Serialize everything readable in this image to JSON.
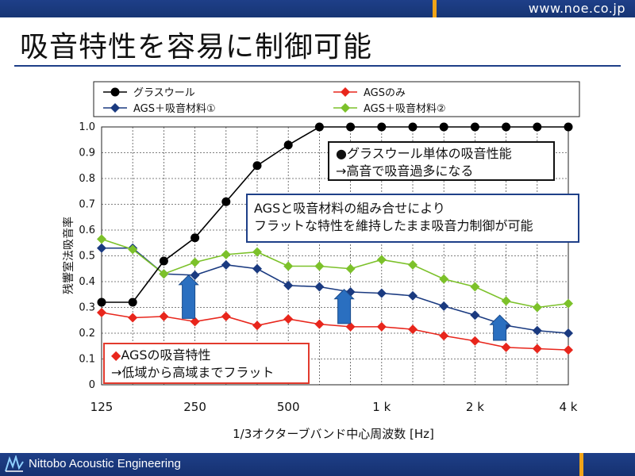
{
  "header": {
    "site_url": "www.noe.co.jp"
  },
  "page": {
    "title": "吸音特性を容易に制御可能"
  },
  "footer": {
    "company_name": "Nittobo Acoustic Engineering"
  },
  "colors": {
    "brand_blue": "#1e3f88",
    "accent_orange": "#f0a418",
    "glass_wool": "#000000",
    "ags_only": "#e8261c",
    "ags_absorber_1": "#1a3a80",
    "ags_absorber_2": "#7cc12a",
    "arrow_blue": "#2a6fc0"
  },
  "annotations": {
    "glass_wool_line1": "●グラスウール単体の吸音性能",
    "glass_wool_line2": "→高音で吸音過多になる",
    "absorber_line1": "AGSと吸音材料の組み合せにより",
    "absorber_line2": "フラットな特性を維持したまま吸音力制御が可能",
    "ags_line1_marker": "◆",
    "ags_line1": "AGSの吸音特性",
    "ags_line2": "→低域から高域までフラット"
  },
  "chart_data": {
    "type": "line",
    "xlabel": "1/3オクターブバンド中心周波数 [Hz]",
    "ylabel": "残響室法吸音率",
    "ylim": [
      0,
      1.0
    ],
    "yticks": [
      "0",
      "0.1",
      "0.2",
      "0.3",
      "0.4",
      "0.5",
      "0.6",
      "0.7",
      "0.8",
      "0.9",
      "1.0"
    ],
    "xtick_labels": [
      "125",
      "250",
      "500",
      "1 k",
      "2 k",
      "4 k"
    ],
    "grid": true,
    "legend_position": "top",
    "x": [
      "125",
      "160",
      "200",
      "250",
      "315",
      "400",
      "500",
      "630",
      "800",
      "1k",
      "1.25k",
      "1.6k",
      "2k",
      "2.5k",
      "3.15k",
      "4k"
    ],
    "series": [
      {
        "name": "グラスウール",
        "color": "#000000",
        "marker": "circle",
        "values": [
          0.32,
          0.32,
          0.48,
          0.57,
          0.71,
          0.85,
          0.93,
          1.0,
          1.0,
          1.0,
          1.0,
          1.0,
          1.0,
          1.0,
          1.0,
          1.0
        ]
      },
      {
        "name": "AGSのみ",
        "color": "#e8261c",
        "marker": "diamond",
        "values": [
          0.28,
          0.26,
          0.265,
          0.245,
          0.265,
          0.23,
          0.255,
          0.235,
          0.225,
          0.225,
          0.215,
          0.19,
          0.17,
          0.145,
          0.14,
          0.135
        ]
      },
      {
        "name": "AGS＋吸音材料①",
        "color": "#1a3a80",
        "marker": "diamond",
        "values": [
          0.53,
          0.53,
          0.43,
          0.425,
          0.465,
          0.45,
          0.385,
          0.38,
          0.36,
          0.355,
          0.345,
          0.305,
          0.27,
          0.23,
          0.21,
          0.2
        ]
      },
      {
        "name": "AGS＋吸音材料②",
        "color": "#7cc12a",
        "marker": "diamond",
        "values": [
          0.565,
          0.525,
          0.43,
          0.475,
          0.505,
          0.515,
          0.46,
          0.46,
          0.45,
          0.485,
          0.465,
          0.41,
          0.38,
          0.325,
          0.3,
          0.315
        ]
      }
    ]
  }
}
